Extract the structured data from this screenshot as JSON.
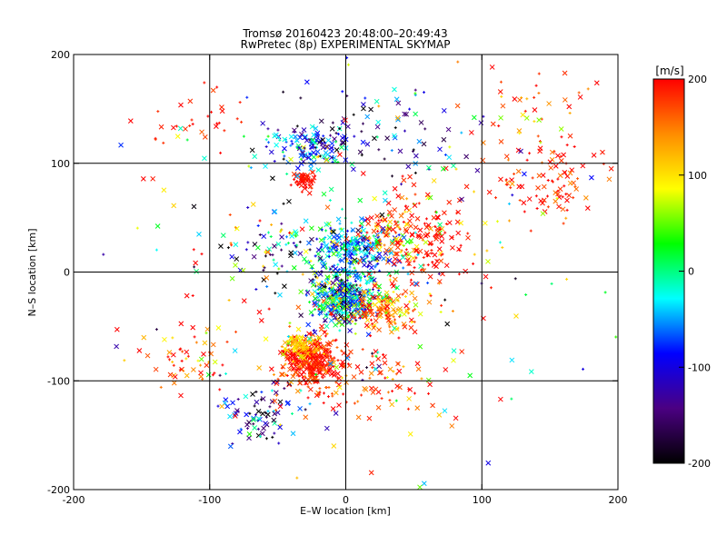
{
  "chart_data": {
    "type": "scatter",
    "title": "Tromsø 20160423 20:48:00–20:49:43",
    "subtitle": "RwPretec (8p) EXPERIMENTAL SKYMAP",
    "xlabel": "E–W location [km]",
    "ylabel": "N–S location [km]",
    "xlim": [
      -200,
      200
    ],
    "ylim": [
      -200,
      200
    ],
    "x_ticks": [
      -200,
      -100,
      0,
      100,
      200
    ],
    "y_ticks": [
      -200,
      -100,
      0,
      100,
      200
    ],
    "grid_lines_x": [
      -100,
      0,
      100
    ],
    "grid_lines_y": [
      -100,
      0,
      100
    ],
    "colorbar": {
      "label": "[m/s]",
      "range": [
        -200,
        200
      ],
      "ticks": [
        -200,
        -100,
        0,
        100,
        200
      ],
      "colors": [
        "#000000",
        "#4b0082",
        "#0000ff",
        "#00ffff",
        "#00ff00",
        "#ffff00",
        "#ff8c00",
        "#ff0000"
      ]
    },
    "marker_types": [
      "x",
      "+"
    ],
    "clusters": [
      {
        "x": -2,
        "y": -25,
        "sx": 12,
        "sy": 12,
        "n": 420,
        "v_mean": -40,
        "v_sd": 90
      },
      {
        "x": 5,
        "y": 20,
        "sx": 14,
        "sy": 12,
        "n": 230,
        "v_mean": -50,
        "v_sd": 40
      },
      {
        "x": 28,
        "y": -35,
        "sx": 12,
        "sy": 10,
        "n": 140,
        "v_mean": 160,
        "v_sd": 50
      },
      {
        "x": -25,
        "y": -80,
        "sx": 10,
        "sy": 12,
        "n": 330,
        "v_mean": 190,
        "v_sd": 30
      },
      {
        "x": -35,
        "y": -68,
        "sx": 6,
        "sy": 6,
        "n": 70,
        "v_mean": 110,
        "v_sd": 20
      },
      {
        "x": -30,
        "y": 85,
        "sx": 5,
        "sy": 5,
        "n": 55,
        "v_mean": 195,
        "v_sd": 10
      },
      {
        "x": -25,
        "y": 115,
        "sx": 15,
        "sy": 10,
        "n": 130,
        "v_mean": -70,
        "v_sd": 70
      },
      {
        "x": 35,
        "y": 35,
        "sx": 18,
        "sy": 18,
        "n": 110,
        "v_mean": 120,
        "v_sd": 80
      },
      {
        "x": 55,
        "y": 30,
        "sx": 18,
        "sy": 22,
        "n": 140,
        "v_mean": 195,
        "v_sd": 15
      },
      {
        "x": -60,
        "y": -130,
        "sx": 15,
        "sy": 15,
        "n": 80,
        "v_mean": -120,
        "v_sd": 80
      },
      {
        "x": 150,
        "y": 85,
        "sx": 25,
        "sy": 20,
        "n": 100,
        "v_mean": 190,
        "v_sd": 25
      },
      {
        "x": 130,
        "y": 150,
        "sx": 25,
        "sy": 20,
        "n": 40,
        "v_mean": 150,
        "v_sd": 50
      },
      {
        "x": 25,
        "y": 130,
        "sx": 40,
        "sy": 20,
        "n": 90,
        "v_mean": -130,
        "v_sd": 80
      },
      {
        "x": -60,
        "y": 20,
        "sx": 20,
        "sy": 15,
        "n": 70,
        "v_mean": -60,
        "v_sd": 120
      },
      {
        "x": 0,
        "y": -95,
        "sx": 30,
        "sy": 20,
        "n": 120,
        "v_mean": 180,
        "v_sd": 40
      },
      {
        "x": -110,
        "y": -80,
        "sx": 15,
        "sy": 20,
        "n": 50,
        "v_mean": 160,
        "v_sd": 60
      },
      {
        "x": -110,
        "y": 140,
        "sx": 20,
        "sy": 20,
        "n": 30,
        "v_mean": 195,
        "v_sd": 15
      },
      {
        "x": 0,
        "y": 0,
        "sx": 90,
        "sy": 90,
        "n": 250,
        "v_mean": 40,
        "v_sd": 140
      }
    ]
  }
}
